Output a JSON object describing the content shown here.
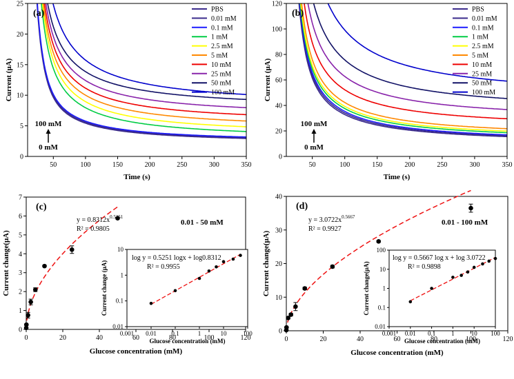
{
  "chart_data": [
    {
      "panel": "(a)",
      "type": "line",
      "xlabel": "Time (s)",
      "ylabel": "Current (μA)",
      "xlim": [
        10,
        350
      ],
      "ylim": [
        0,
        25
      ],
      "xticks": [
        50,
        100,
        150,
        200,
        250,
        300,
        350
      ],
      "yticks": [
        0,
        5,
        10,
        15,
        20,
        25
      ],
      "annotation_top": "100 mM",
      "annotation_bottom": "0 mM",
      "series": [
        {
          "name": "PBS",
          "color": "#3a2a8c",
          "final": 2.0,
          "a": 2.3
        },
        {
          "name": "0.01 mM",
          "color": "#3a2a8c",
          "final": 2.1,
          "a": 2.35
        },
        {
          "name": "0.1 mM",
          "color": "#1a1aff",
          "final": 2.2,
          "a": 2.4
        },
        {
          "name": "1 mM",
          "color": "#00cc44",
          "final": 2.6,
          "a": 3.6
        },
        {
          "name": "2.5 mM",
          "color": "#ffff00",
          "final": 3.3,
          "a": 3.8
        },
        {
          "name": "5 mM",
          "color": "#ff8800",
          "final": 4.2,
          "a": 3.9
        },
        {
          "name": "10 mM",
          "color": "#ee0000",
          "final": 5.2,
          "a": 4.0
        },
        {
          "name": "25 mM",
          "color": "#8822aa",
          "final": 6.3,
          "a": 4.1
        },
        {
          "name": "50 mM",
          "color": "#111166",
          "final": 7.6,
          "a": 4.2
        },
        {
          "name": "100 mM",
          "color": "#0000cc",
          "final": 8.0,
          "a": 5.2
        }
      ]
    },
    {
      "panel": "(b)",
      "type": "line",
      "xlabel": "Time (s)",
      "ylabel": "Current (μA)",
      "xlim": [
        10,
        350
      ],
      "ylim": [
        0,
        120
      ],
      "xticks": [
        50,
        100,
        150,
        200,
        250,
        300,
        350
      ],
      "yticks": [
        0,
        20,
        40,
        60,
        80,
        100,
        120
      ],
      "annotation_top": "100 mM",
      "annotation_bottom": "0 mM",
      "series": [
        {
          "name": "PBS",
          "color": "#3a2a8c",
          "final": 9.0,
          "a": 16
        },
        {
          "name": "0.01 mM",
          "color": "#3a2a8c",
          "final": 9.5,
          "a": 16.5
        },
        {
          "name": "0.1 mM",
          "color": "#1a1aff",
          "final": 10.0,
          "a": 17
        },
        {
          "name": "1 mM",
          "color": "#00cc44",
          "final": 11.5,
          "a": 17.5
        },
        {
          "name": "2.5 mM",
          "color": "#ffff00",
          "final": 12.5,
          "a": 18
        },
        {
          "name": "5 mM",
          "color": "#ff8800",
          "final": 14.0,
          "a": 19
        },
        {
          "name": "10 mM",
          "color": "#ee0000",
          "final": 21.0,
          "a": 21
        },
        {
          "name": "25 mM",
          "color": "#8822aa",
          "final": 27.0,
          "a": 24
        },
        {
          "name": "50 mM",
          "color": "#111166",
          "final": 34.0,
          "a": 28
        },
        {
          "name": "100 mM",
          "color": "#0000cc",
          "final": 44.0,
          "a": 37
        }
      ]
    },
    {
      "panel": "(c)",
      "type": "scatter",
      "xlabel": "Glucose concentration (mM)",
      "ylabel": "Current change(μA)",
      "xlim": [
        0,
        120
      ],
      "ylim": [
        0,
        7
      ],
      "xticks": [
        0,
        20,
        40,
        60,
        80,
        100,
        120
      ],
      "yticks": [
        0,
        1,
        2,
        3,
        4,
        5,
        6,
        7
      ],
      "fit_eq_base": "y = 0.8312x",
      "fit_eq_exp": "0.5251",
      "fit_r2": "R² = 0.9805",
      "fit_a": 0.8312,
      "fit_b": 0.5251,
      "range_label": "0.01 - 50 mM",
      "points": [
        {
          "x": 0.01,
          "y": 0.08,
          "err": 0.01
        },
        {
          "x": 0.1,
          "y": 0.25,
          "err": 0.03
        },
        {
          "x": 1,
          "y": 0.75,
          "err": 0.15
        },
        {
          "x": 2.5,
          "y": 1.45,
          "err": 0.15
        },
        {
          "x": 5,
          "y": 2.1,
          "err": 0.1
        },
        {
          "x": 10,
          "y": 3.35,
          "err": 0.05
        },
        {
          "x": 25,
          "y": 4.22,
          "err": 0.2
        },
        {
          "x": 50,
          "y": 5.88,
          "err": 0.05
        }
      ],
      "inset": {
        "xlabel": "Glucose concentration (mM)",
        "ylabel": "Current change (μA)",
        "xticks": [
          "0.001",
          "0.01",
          "0.1",
          "1",
          "10",
          "100"
        ],
        "yticks": [
          "0.01",
          "0.1",
          "1",
          "10"
        ],
        "xlog": [
          -3,
          2
        ],
        "ylog": [
          -2,
          1
        ],
        "eq1": "log y = 0.5251 logx + log0.8312",
        "eq2": "R² = 0.9955",
        "slope": 0.5251,
        "intercept": 0.8312
      }
    },
    {
      "panel": "(d)",
      "type": "scatter",
      "xlabel": "Glucose concentration (mM)",
      "ylabel": "Current change(μA)",
      "xlim": [
        0,
        120
      ],
      "ylim": [
        0,
        40
      ],
      "xticks": [
        0,
        20,
        40,
        60,
        80,
        100,
        120
      ],
      "yticks": [
        0,
        10,
        20,
        30,
        40
      ],
      "fit_eq_base": "y = 3.0722x",
      "fit_eq_exp": "0.5667",
      "fit_r2": "R² = 0.9927",
      "fit_a": 3.0722,
      "fit_b": 0.5667,
      "range_label": "0.01 - 100 mM",
      "points": [
        {
          "x": 0.01,
          "y": 0.2,
          "err": 0.1
        },
        {
          "x": 0.1,
          "y": 1.0,
          "err": 0.1
        },
        {
          "x": 1,
          "y": 3.8,
          "err": 0.3
        },
        {
          "x": 2.5,
          "y": 4.8,
          "err": 0.4
        },
        {
          "x": 5,
          "y": 7.2,
          "err": 1.2
        },
        {
          "x": 10,
          "y": 12.6,
          "err": 0.4
        },
        {
          "x": 25,
          "y": 19.1,
          "err": 0.4
        },
        {
          "x": 50,
          "y": 26.6,
          "err": 0.3
        },
        {
          "x": 100,
          "y": 36.5,
          "err": 1.2
        }
      ],
      "inset": {
        "xlabel": "Glucose concentration (mM)",
        "ylabel": "Current change(μA)",
        "xticks": [
          "0.001",
          "0.01",
          "0.1",
          "1",
          "10",
          "100"
        ],
        "yticks": [
          "0.01",
          "0.1",
          "1",
          "10",
          "100"
        ],
        "xlog": [
          -3,
          2
        ],
        "ylog": [
          -2,
          2
        ],
        "eq1": "log y = 0.5667 log x + log 3.0722",
        "eq2": "R² = 0.9898",
        "slope": 0.5667,
        "intercept": 3.0722
      }
    }
  ]
}
